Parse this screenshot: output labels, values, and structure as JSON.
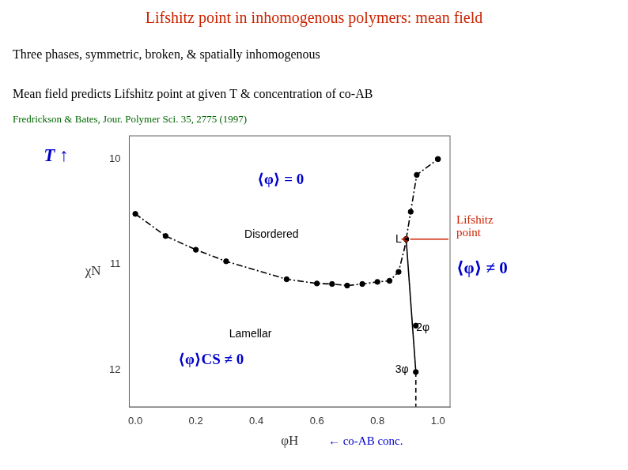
{
  "chart_data": {
    "type": "line",
    "title": "Lifshitz point in inhomogenous polymers: mean field",
    "title_color": "#cc2200",
    "subtitles": [
      "Three phases, symmetric, broken, & spatially inhomogenous",
      "Mean field predicts Lifshitz point at given T & concentration of co-AB"
    ],
    "reference": "Fredrickson & Bates, Jour. Polymer Sci. 35, 2775 (1997)",
    "reference_color": "#006600",
    "xlabel": "φH",
    "ylabel": "χN",
    "xlim": [
      -0.02,
      1.04
    ],
    "ylim": [
      12.35,
      9.78
    ],
    "xticks": [
      {
        "value": 0,
        "label": "0.0"
      },
      0.2,
      0.4,
      0.6,
      0.8,
      {
        "value": 1.0,
        "label": "1.0"
      }
    ],
    "yticks": [
      10,
      11,
      12
    ],
    "grid": false,
    "series": [
      {
        "type": "line",
        "line_style": "dashdot",
        "color": "#000000",
        "x": [
          0.0,
          0.1,
          0.2,
          0.3,
          0.5,
          0.6,
          0.65,
          0.7,
          0.75,
          0.8,
          0.84,
          0.87,
          0.89,
          0.895,
          0.91,
          0.93,
          1.0
        ],
        "values": [
          10.52,
          10.73,
          10.86,
          10.97,
          11.14,
          11.18,
          11.185,
          11.2,
          11.185,
          11.165,
          11.155,
          11.07,
          10.84,
          10.76,
          10.5,
          10.15,
          10.0
        ]
      },
      {
        "type": "scatter",
        "marker": "circle",
        "color": "#000000",
        "x": [
          0.0,
          0.1,
          0.2,
          0.3,
          0.5,
          0.6,
          0.65,
          0.7,
          0.75,
          0.8,
          0.84,
          0.87,
          0.895,
          0.91,
          0.93,
          1.0
        ],
        "values": [
          10.52,
          10.73,
          10.86,
          10.97,
          11.14,
          11.18,
          11.185,
          11.2,
          11.185,
          11.165,
          11.155,
          11.07,
          10.76,
          10.5,
          10.15,
          10.0
        ]
      },
      {
        "type": "line",
        "line_style": "solid",
        "color": "#000000",
        "x": [
          0.895,
          0.927
        ],
        "values": [
          10.76,
          12.02
        ]
      },
      {
        "type": "line",
        "line_style": "dashed",
        "color": "#000000",
        "x": [
          0.927,
          0.927
        ],
        "values": [
          12.02,
          12.35
        ]
      },
      {
        "type": "scatter",
        "marker": "circle",
        "color": "#000000",
        "x": [
          0.895,
          0.927,
          0.927,
          1.0
        ],
        "values": [
          10.76,
          11.58,
          12.02,
          10.0
        ]
      }
    ],
    "annotations": [
      {
        "text": "2φ",
        "x": 0.95,
        "y": 11.6,
        "color": "#000000"
      },
      {
        "text": "3φ",
        "x": 0.881,
        "y": 12.0,
        "color": "#000000"
      },
      {
        "text": "L",
        "x": 0.87,
        "y": 10.76,
        "color": "#000000"
      },
      {
        "text": "⟨φ⟩ = 0",
        "x": 0.48,
        "y": 10.2,
        "color": "#0000cc"
      },
      {
        "text": "Disordered",
        "x": 0.45,
        "y": 10.72,
        "color": "#000000"
      },
      {
        "text": "Lamellar",
        "x": 0.38,
        "y": 11.665,
        "color": "#000000"
      },
      {
        "text": "⟨φ⟩CS ≠ 0",
        "x": 0.25,
        "y": 11.91,
        "color": "#0000cc"
      }
    ],
    "arrow": {
      "from": [
        1.035,
        10.76
      ],
      "to": [
        0.895,
        10.76
      ],
      "color": "#cc2200",
      "text": [
        "Lifshitz",
        "point"
      ]
    },
    "right_note": {
      "text": "⟨φ⟩ ≠ 0",
      "color": "#0000cc"
    },
    "y_note": {
      "text": "T ↑",
      "color": "#0000cc"
    },
    "x_note": {
      "text": "← co-AB conc.",
      "color": "#0000cc"
    }
  }
}
